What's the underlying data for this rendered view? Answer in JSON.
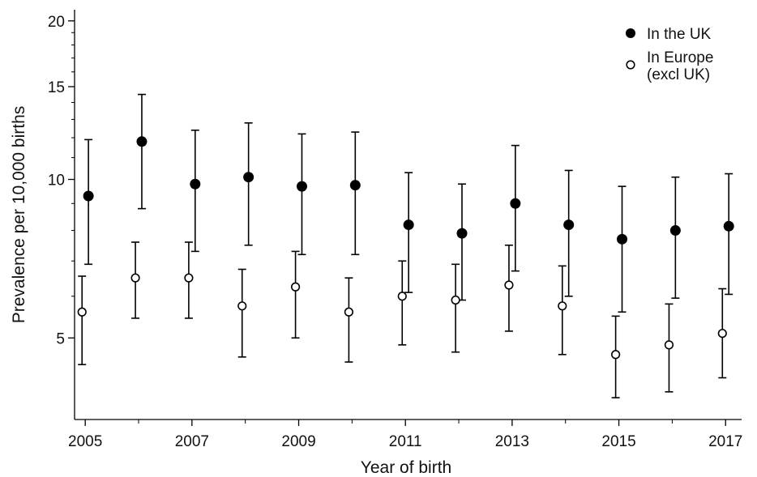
{
  "chart_data": {
    "type": "scatter",
    "title": "",
    "xlabel": "Year of birth",
    "ylabel": "Prevalence per 10,000 births",
    "yscale": "log",
    "xlim": [
      2004.8,
      2017.3
    ],
    "ylim": [
      3.5,
      21
    ],
    "x_ticks": [
      2005,
      2007,
      2009,
      2011,
      2013,
      2015,
      2017
    ],
    "x_minor_ticks": [
      2006,
      2008,
      2010,
      2012,
      2014,
      2016
    ],
    "y_ticks": [
      5,
      10,
      15,
      20
    ],
    "y_minor_ticks": [
      6,
      7,
      8,
      9,
      11,
      12,
      13,
      14,
      16,
      17,
      18,
      19
    ],
    "grid": false,
    "legend_position": "top-right",
    "series": [
      {
        "name": "In the UK",
        "marker": "filled-circle",
        "color": "#000000",
        "x": [
          2005,
          2006,
          2007,
          2008,
          2009,
          2010,
          2011,
          2012,
          2013,
          2014,
          2015,
          2016,
          2017
        ],
        "y": [
          9.3,
          11.8,
          9.8,
          10.1,
          9.7,
          9.75,
          8.2,
          7.9,
          9.0,
          8.2,
          7.7,
          8.0,
          8.15
        ],
        "lower": [
          6.9,
          8.8,
          7.3,
          7.5,
          7.2,
          7.2,
          6.1,
          5.9,
          6.7,
          6.0,
          5.6,
          5.95,
          6.05
        ],
        "upper": [
          11.9,
          14.5,
          12.4,
          12.8,
          12.2,
          12.3,
          10.3,
          9.8,
          11.6,
          10.4,
          9.7,
          10.1,
          10.25
        ]
      },
      {
        "name": "In Europe\n(excl UK)",
        "marker": "open-circle",
        "color": "#000000",
        "x": [
          2005,
          2006,
          2007,
          2008,
          2009,
          2010,
          2011,
          2012,
          2013,
          2014,
          2015,
          2016,
          2017
        ],
        "y": [
          5.6,
          6.5,
          6.5,
          5.75,
          6.25,
          5.6,
          6.0,
          5.9,
          6.3,
          5.75,
          4.65,
          4.85,
          5.1
        ],
        "lower": [
          4.45,
          5.45,
          5.45,
          4.6,
          5.0,
          4.5,
          4.85,
          4.7,
          5.15,
          4.65,
          3.85,
          3.95,
          4.2
        ],
        "upper": [
          6.55,
          7.6,
          7.6,
          6.75,
          7.3,
          6.5,
          7.0,
          6.9,
          7.5,
          6.85,
          5.5,
          5.8,
          6.2
        ]
      }
    ]
  }
}
